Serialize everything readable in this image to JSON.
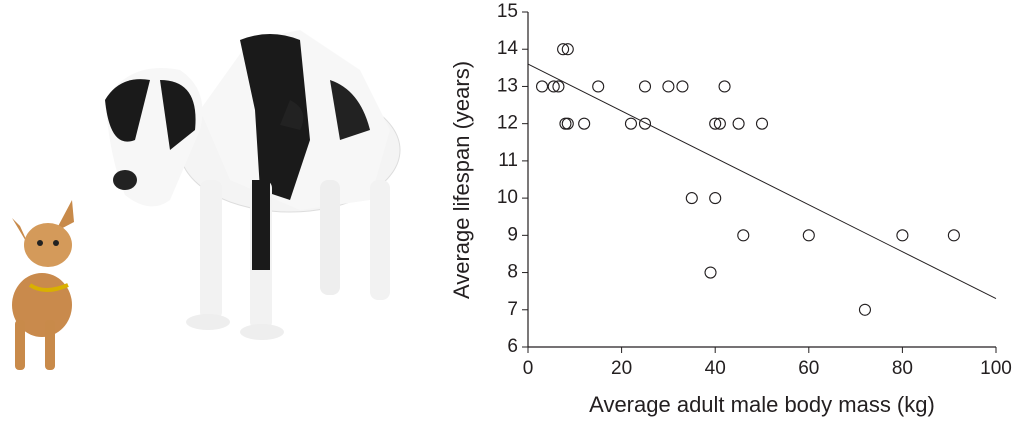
{
  "chart_data": {
    "type": "scatter",
    "x_label": "Average adult male body mass (kg)",
    "y_label": "Average lifespan (years)",
    "x": [
      3,
      5.5,
      6.5,
      7.5,
      8.5,
      8,
      8.5,
      12,
      15,
      22,
      25,
      25,
      30,
      33,
      35,
      39,
      40,
      40,
      41,
      42,
      45,
      46,
      50,
      60,
      72,
      80,
      91
    ],
    "values": [
      13,
      13,
      13,
      14,
      14,
      12,
      12,
      12,
      13,
      12,
      13,
      12,
      13,
      13,
      10,
      8,
      10,
      12,
      12,
      13,
      12,
      9,
      12,
      9,
      7,
      9,
      9
    ],
    "color": "#231f20",
    "trend_line": {
      "x": [
        0,
        100
      ],
      "y": [
        13.6,
        7.3
      ]
    },
    "xlim": [
      0,
      100
    ],
    "ylim": [
      6,
      15
    ],
    "xticks": [
      0,
      20,
      40,
      60,
      80,
      100
    ],
    "yticks": [
      6,
      7,
      8,
      9,
      10,
      11,
      12,
      13,
      14,
      15
    ]
  }
}
